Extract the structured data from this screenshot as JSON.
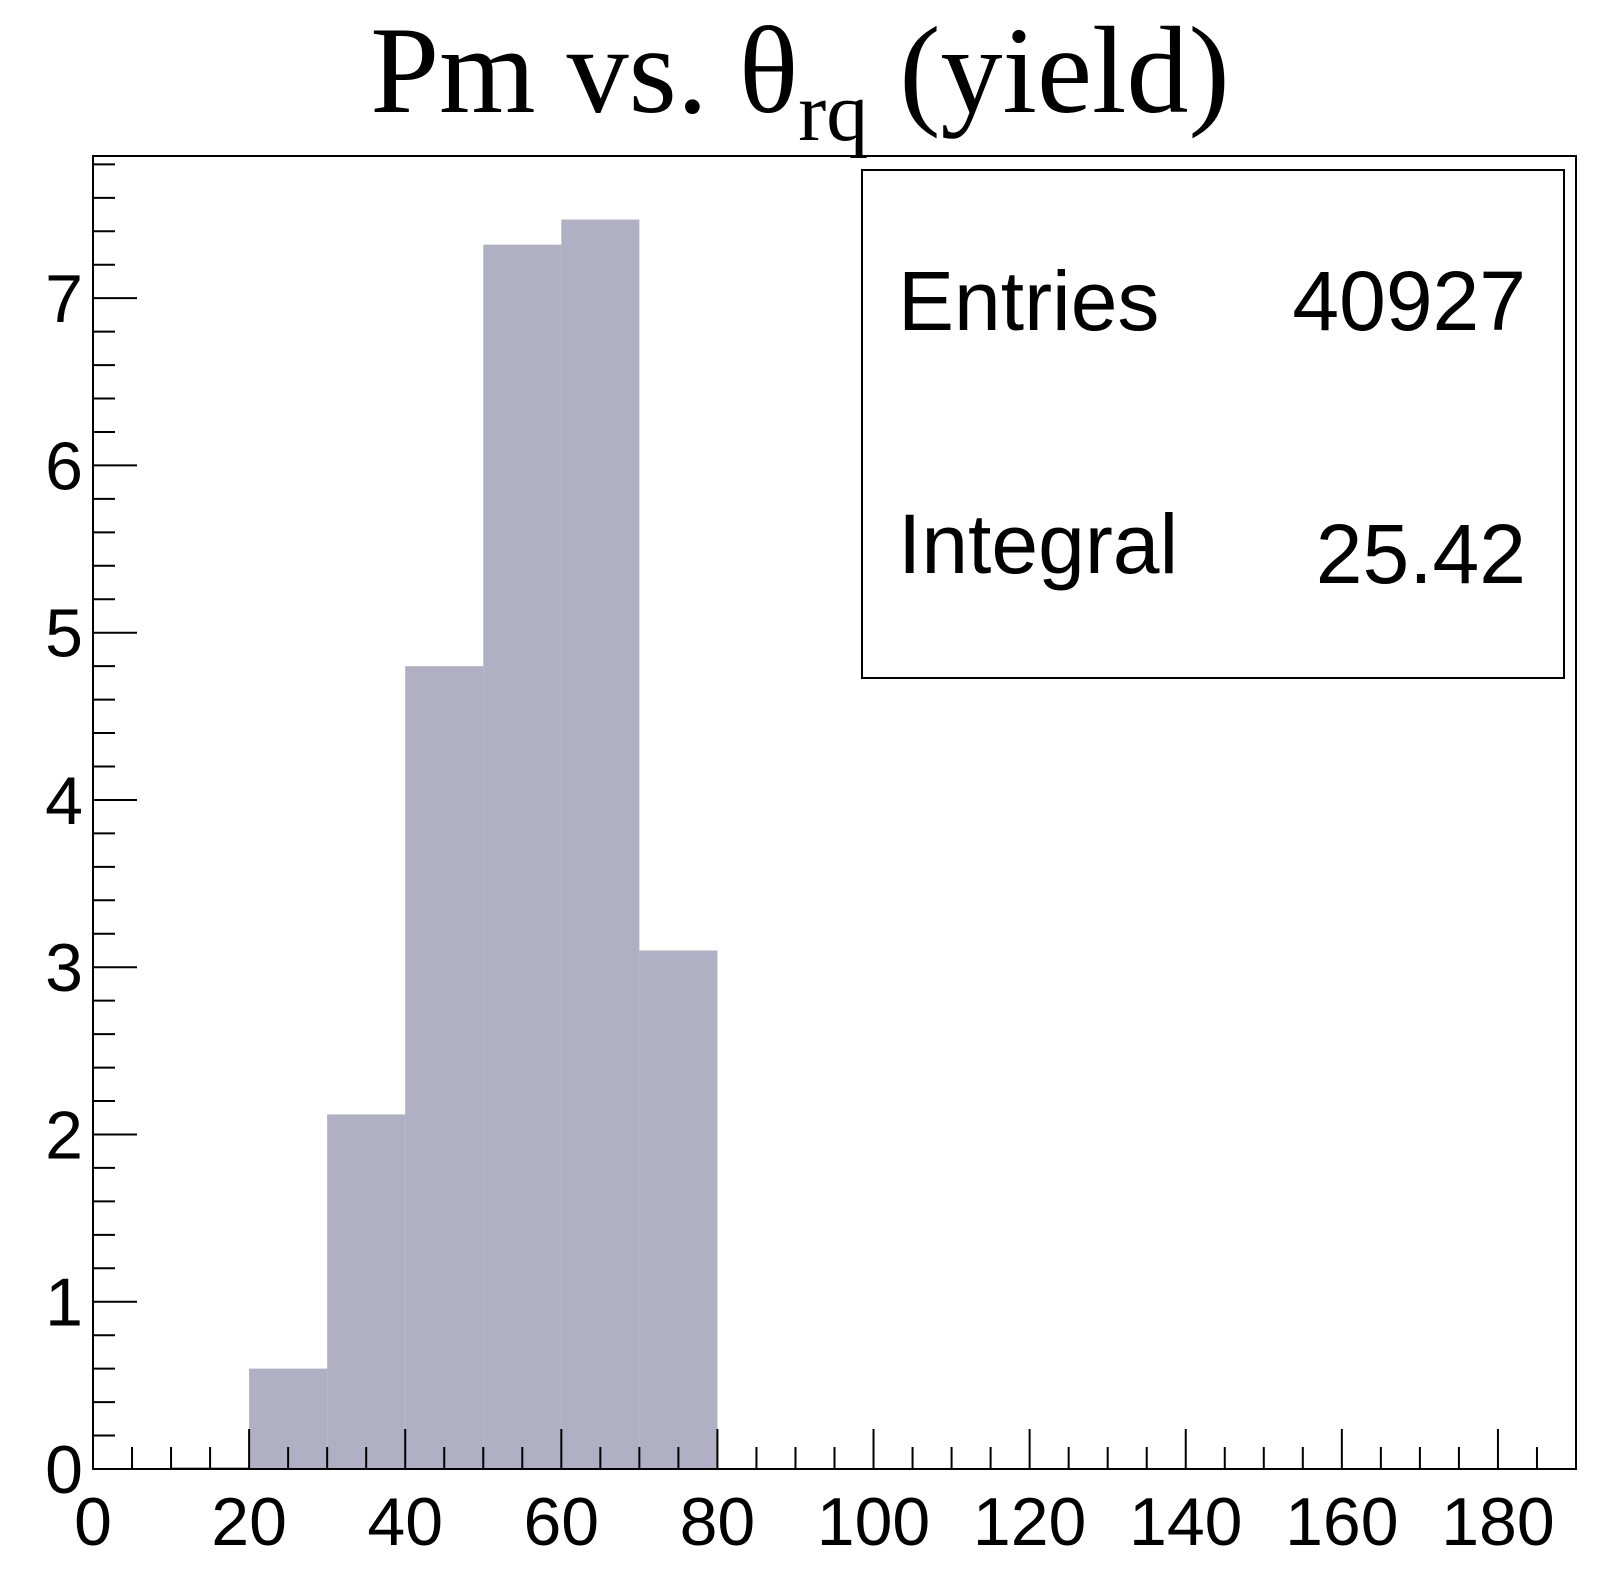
{
  "chart_data": {
    "type": "bar",
    "title": {
      "main": "Pm vs. θ",
      "subscript": "rq",
      "suffix": " (yield)"
    },
    "bin_width": 10,
    "bins": [
      {
        "x_low": 0,
        "x_high": 10,
        "value": 0
      },
      {
        "x_low": 10,
        "x_high": 20,
        "value": 0.01
      },
      {
        "x_low": 20,
        "x_high": 30,
        "value": 0.6
      },
      {
        "x_low": 30,
        "x_high": 40,
        "value": 2.12
      },
      {
        "x_low": 40,
        "x_high": 50,
        "value": 4.8
      },
      {
        "x_low": 50,
        "x_high": 60,
        "value": 7.32
      },
      {
        "x_low": 60,
        "x_high": 70,
        "value": 7.47
      },
      {
        "x_low": 70,
        "x_high": 80,
        "value": 3.1
      },
      {
        "x_low": 80,
        "x_high": 90,
        "value": 0
      }
    ],
    "xlim": [
      0,
      190
    ],
    "ylim": [
      0,
      7.85
    ],
    "x_ticks": [
      "0",
      "20",
      "40",
      "60",
      "80",
      "100",
      "120",
      "140",
      "160",
      "180"
    ],
    "y_ticks": [
      "0",
      "1",
      "2",
      "3",
      "4",
      "5",
      "6",
      "7"
    ],
    "fill_color": "#b0afc3",
    "grid": false,
    "legend": "none",
    "stats_box": {
      "placement": "top-right",
      "rows": [
        {
          "label": "Entries",
          "value": "40927"
        },
        {
          "label": "Integral",
          "value": "25.42"
        }
      ]
    }
  }
}
